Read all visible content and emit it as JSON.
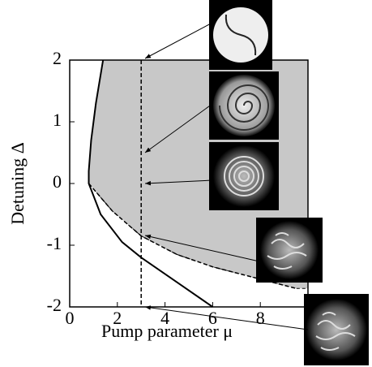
{
  "chart_data": {
    "type": "line",
    "xlabel": "Pump parameter μ",
    "ylabel": "Detuning Δ",
    "xlim": [
      0,
      10
    ],
    "ylim": [
      -2,
      2
    ],
    "xticks": [
      0,
      2,
      4,
      6,
      8
    ],
    "yticks": [
      -2,
      -1,
      0,
      1,
      2
    ],
    "fill_color": "#c8c8c8",
    "series": [
      {
        "color": "#000000",
        "dashed": false,
        "x": [
          1.4,
          1.1,
          0.9,
          0.8,
          0.8,
          1.3,
          2.2,
          3.0,
          4.5,
          6.0
        ],
        "y": [
          2,
          1.3,
          0.7,
          0.2,
          0,
          -0.5,
          -0.95,
          -1.2,
          -1.6,
          -2
        ]
      },
      {
        "color": "#000000",
        "dashed": true,
        "x": [
          0.8,
          1.8,
          3.0,
          4.5,
          6.0,
          7.5,
          9.5
        ],
        "y": [
          0,
          -0.45,
          -0.85,
          -1.15,
          -1.35,
          -1.5,
          -1.7
        ]
      },
      {
        "color": "#000000",
        "dashed": true,
        "x": [
          3,
          3
        ],
        "y": [
          2,
          -2
        ]
      }
    ]
  }
}
